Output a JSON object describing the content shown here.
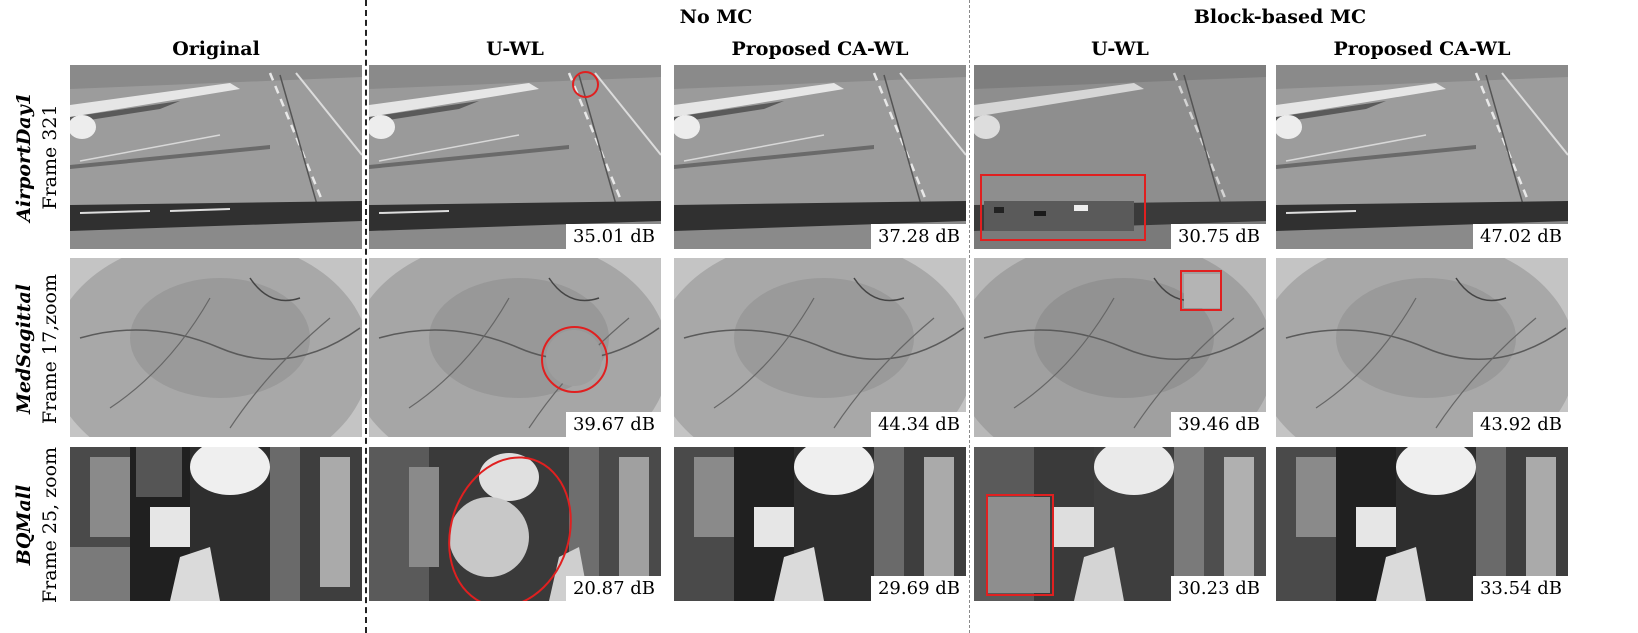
{
  "group_headers": {
    "no_mc": "No MC",
    "block_mc": "Block-based MC"
  },
  "column_headers": [
    "Original",
    "U-WL",
    "Proposed CA-WL",
    "U-WL",
    "Proposed CA-WL"
  ],
  "rows": [
    {
      "sequence": "AirportDay1",
      "frame": "Frame 321",
      "psnr": [
        "",
        "35.01 dB",
        "37.28 dB",
        "30.75 dB",
        "47.02 dB"
      ]
    },
    {
      "sequence": "MedSagittal",
      "frame": "Frame 17,zoom",
      "psnr": [
        "",
        "39.67 dB",
        "44.34 dB",
        "39.46 dB",
        "43.92 dB"
      ]
    },
    {
      "sequence": "BQMall",
      "frame": "Frame 25, zoom",
      "psnr": [
        "",
        "20.87 dB",
        "29.69 dB",
        "30.23 dB",
        "33.54 dB"
      ]
    }
  ],
  "colors": {
    "annotation": "#e02020"
  }
}
